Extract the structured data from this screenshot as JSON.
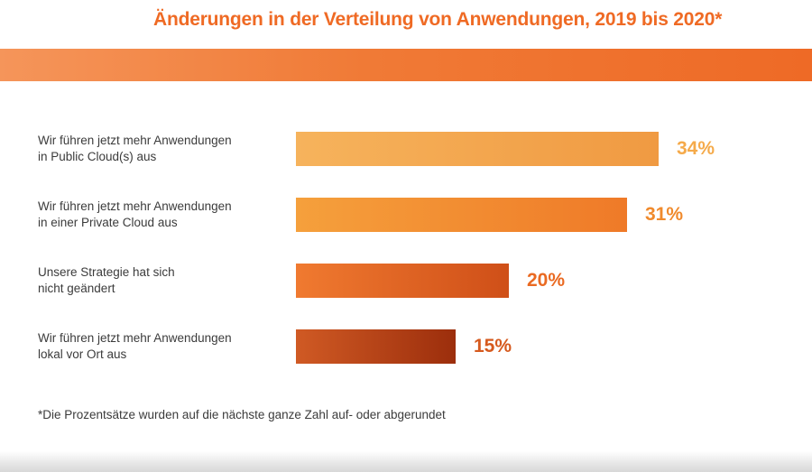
{
  "chart_data": {
    "type": "bar",
    "orientation": "horizontal",
    "title": "Änderungen in der Verteilung von Anwendungen, 2019 bis 2020*",
    "categories": [
      [
        "Wir führen jetzt mehr Anwendungen",
        "in Public Cloud(s) aus"
      ],
      [
        "Wir führen jetzt mehr Anwendungen",
        "in einer Private Cloud aus"
      ],
      [
        "Unsere Strategie hat sich",
        "nicht geändert"
      ],
      [
        "Wir führen jetzt mehr Anwendungen",
        "lokal vor Ort aus"
      ]
    ],
    "values": [
      34,
      31,
      20,
      15
    ],
    "value_labels": [
      "34%",
      "31%",
      "20%",
      "15%"
    ],
    "unit": "%",
    "xlim": [
      0,
      34
    ],
    "grid": false,
    "legend": "none",
    "bar_colors": [
      [
        "#f6b35c",
        "#f09a42"
      ],
      [
        "#f5a03c",
        "#ef7a28"
      ],
      [
        "#f07a30",
        "#cf4f18"
      ],
      [
        "#d05a24",
        "#9c2e0c"
      ]
    ],
    "label_colors": [
      "#f5aa4a",
      "#f08a2c",
      "#ea6a22",
      "#d65a1e"
    ],
    "footnote": "*Die Prozentsätze wurden auf die nächste ganze Zahl auf- oder abgerundet"
  }
}
